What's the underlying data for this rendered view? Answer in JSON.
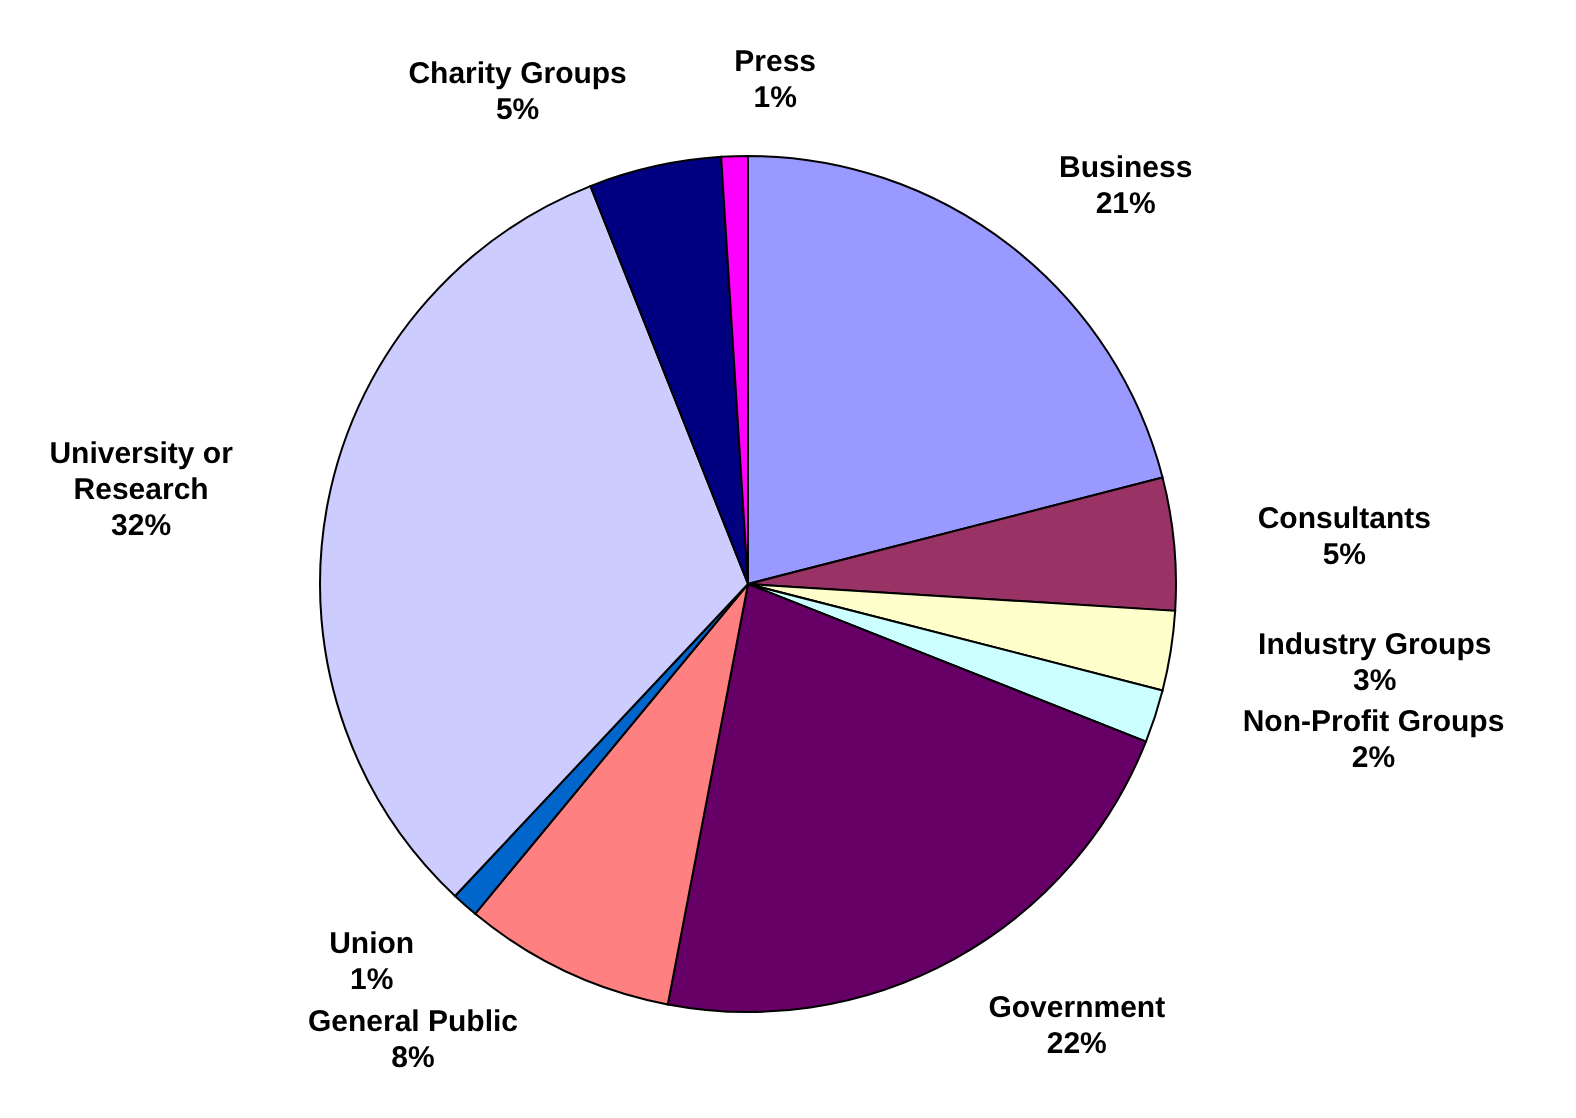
{
  "chart_data": {
    "type": "pie",
    "categories": [
      "Business",
      "Consultants",
      "Industry Groups",
      "Non-Profit Groups",
      "Government",
      "General Public",
      "Union",
      "University or Research",
      "Charity Groups",
      "Press"
    ],
    "values": [
      21,
      5,
      3,
      2,
      22,
      8,
      1,
      32,
      5,
      1
    ],
    "value_labels": [
      "21%",
      "5%",
      "3%",
      "2%",
      "22%",
      "8%",
      "1%",
      "32%",
      "5%",
      "1%"
    ],
    "colors": [
      "#9999ff",
      "#993366",
      "#ffffcc",
      "#ccffff",
      "#660066",
      "#ff8080",
      "#0066cc",
      "#ccccff",
      "#000080",
      "#ff00ff"
    ]
  }
}
